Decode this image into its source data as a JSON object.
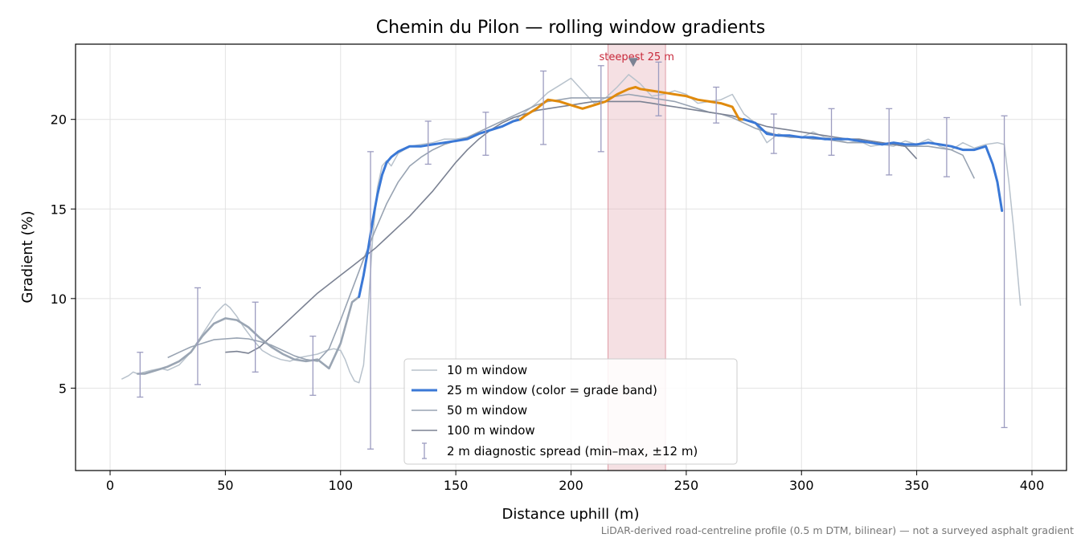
{
  "chart_data": {
    "type": "line",
    "title": "Chemin du Pilon — rolling window gradients",
    "xlabel": "Distance uphill (m)",
    "ylabel": "Gradient (%)",
    "xlim": [
      -15,
      415
    ],
    "ylim": [
      0.4,
      24.2
    ],
    "xticks": [
      0,
      50,
      100,
      150,
      200,
      250,
      300,
      350,
      400
    ],
    "yticks": [
      5,
      10,
      15,
      20
    ],
    "grid": true,
    "legend_position": "lower-center",
    "colors": {
      "w10": "#b8c2cc",
      "w25_blue": "#3a78d6",
      "w25_orange": "#e08a0c",
      "w50": "#98a3b2",
      "w100": "#7b8293",
      "errorbar": "#9c9cc0",
      "highlight": "#e8b4bc",
      "highlight_text": "#c8283a",
      "marker": "#7b8293"
    },
    "series": [
      {
        "name": "10 m window",
        "x": [
          5,
          8,
          10,
          12,
          15,
          18,
          22,
          25,
          30,
          35,
          40,
          43,
          46,
          49,
          50,
          52,
          55,
          58,
          62,
          66,
          70,
          74,
          78,
          82,
          86,
          90,
          94,
          97,
          100,
          102,
          104,
          106,
          108,
          110,
          112,
          114,
          116,
          118,
          120,
          122,
          125,
          130,
          135,
          140,
          145,
          150,
          155,
          160,
          165,
          170,
          175,
          180,
          185,
          190,
          195,
          200,
          205,
          210,
          215,
          220,
          225,
          230,
          235,
          240,
          245,
          250,
          255,
          260,
          265,
          270,
          275,
          280,
          285,
          290,
          295,
          300,
          305,
          310,
          315,
          320,
          325,
          330,
          335,
          340,
          345,
          350,
          355,
          360,
          365,
          370,
          375,
          380,
          385,
          388,
          390,
          392,
          395
        ],
        "y": [
          5.5,
          5.7,
          5.9,
          5.8,
          5.9,
          6.0,
          6.1,
          6.0,
          6.3,
          7.0,
          8.0,
          8.6,
          9.2,
          9.6,
          9.7,
          9.5,
          9.0,
          8.4,
          7.7,
          7.1,
          6.8,
          6.6,
          6.5,
          6.7,
          6.8,
          6.9,
          7.1,
          7.2,
          7.1,
          6.6,
          5.9,
          5.4,
          5.3,
          6.3,
          9.5,
          13.5,
          16.2,
          17.4,
          17.7,
          17.4,
          18.1,
          18.5,
          18.6,
          18.7,
          18.9,
          18.9,
          19.0,
          19.2,
          19.4,
          19.6,
          19.9,
          20.4,
          20.9,
          21.5,
          21.9,
          22.3,
          21.6,
          20.9,
          21.2,
          21.8,
          22.5,
          22.0,
          21.3,
          21.4,
          21.6,
          21.4,
          20.9,
          21.0,
          21.1,
          21.4,
          20.3,
          19.8,
          18.7,
          19.2,
          19.0,
          19.0,
          19.3,
          19.0,
          18.9,
          18.7,
          18.8,
          18.5,
          18.6,
          18.5,
          18.8,
          18.6,
          18.9,
          18.5,
          18.3,
          18.7,
          18.4,
          18.6,
          18.7,
          18.6,
          16.5,
          14.0,
          9.6
        ]
      },
      {
        "name": "25 m window (color = grade band)",
        "x": [
          12,
          15,
          20,
          25,
          30,
          35,
          40,
          45,
          50,
          55,
          60,
          65,
          70,
          75,
          80,
          85,
          90,
          93,
          95,
          100,
          105,
          108,
          110,
          112,
          114,
          116,
          118,
          120,
          122,
          125,
          130,
          135,
          140,
          145,
          150,
          155,
          160,
          165,
          170,
          175,
          178,
          180,
          185,
          190,
          195,
          200,
          205,
          210,
          215,
          220,
          225,
          228,
          230,
          235,
          240,
          245,
          250,
          255,
          260,
          265,
          270,
          273,
          275,
          280,
          285,
          290,
          295,
          300,
          305,
          310,
          315,
          320,
          325,
          330,
          335,
          340,
          345,
          350,
          355,
          360,
          365,
          370,
          375,
          380,
          383,
          385,
          387
        ],
        "y": [
          5.8,
          5.8,
          6.0,
          6.2,
          6.5,
          7.0,
          7.9,
          8.6,
          8.9,
          8.8,
          8.4,
          7.8,
          7.3,
          6.9,
          6.6,
          6.5,
          6.6,
          6.3,
          6.1,
          7.5,
          9.8,
          10.1,
          11.3,
          12.8,
          14.4,
          15.8,
          16.9,
          17.6,
          17.9,
          18.2,
          18.5,
          18.5,
          18.6,
          18.7,
          18.8,
          18.9,
          19.2,
          19.4,
          19.6,
          19.9,
          20.0,
          20.2,
          20.6,
          21.1,
          21.0,
          20.8,
          20.6,
          20.8,
          21.0,
          21.4,
          21.7,
          21.8,
          21.7,
          21.6,
          21.5,
          21.4,
          21.3,
          21.1,
          21.0,
          20.9,
          20.7,
          20.0,
          20.0,
          19.8,
          19.2,
          19.1,
          19.1,
          19.0,
          19.0,
          18.9,
          18.9,
          18.9,
          18.8,
          18.7,
          18.6,
          18.7,
          18.6,
          18.6,
          18.7,
          18.6,
          18.5,
          18.3,
          18.3,
          18.5,
          17.5,
          16.5,
          14.9
        ],
        "orange_range": [
          178,
          273
        ]
      },
      {
        "name": "50 m window",
        "x": [
          25,
          30,
          35,
          40,
          45,
          50,
          55,
          60,
          65,
          70,
          75,
          80,
          85,
          90,
          95,
          100,
          105,
          110,
          115,
          120,
          125,
          130,
          135,
          140,
          145,
          150,
          155,
          160,
          165,
          170,
          175,
          180,
          185,
          190,
          195,
          200,
          205,
          210,
          215,
          220,
          225,
          230,
          235,
          240,
          245,
          250,
          255,
          260,
          265,
          270,
          275,
          280,
          285,
          290,
          295,
          300,
          305,
          310,
          315,
          320,
          325,
          330,
          335,
          340,
          345,
          350,
          355,
          360,
          365,
          370,
          375
        ],
        "y": [
          6.7,
          7.0,
          7.3,
          7.5,
          7.7,
          7.75,
          7.8,
          7.75,
          7.6,
          7.4,
          7.1,
          6.8,
          6.6,
          6.5,
          7.2,
          8.8,
          10.5,
          12.2,
          13.8,
          15.3,
          16.5,
          17.4,
          17.9,
          18.3,
          18.6,
          18.8,
          19.0,
          19.3,
          19.6,
          19.9,
          20.2,
          20.5,
          20.8,
          21.0,
          21.1,
          21.2,
          21.2,
          21.2,
          21.2,
          21.3,
          21.4,
          21.3,
          21.2,
          21.1,
          21.0,
          20.8,
          20.6,
          20.4,
          20.3,
          20.1,
          19.8,
          19.5,
          19.3,
          19.1,
          19.0,
          19.0,
          18.9,
          18.9,
          18.8,
          18.7,
          18.7,
          18.7,
          18.6,
          18.6,
          18.5,
          18.5,
          18.5,
          18.4,
          18.3,
          18.0,
          16.7
        ]
      },
      {
        "name": "100 m window",
        "x": [
          50,
          55,
          60,
          65,
          70,
          75,
          80,
          85,
          90,
          95,
          100,
          105,
          110,
          115,
          120,
          125,
          130,
          135,
          140,
          145,
          150,
          155,
          160,
          165,
          170,
          175,
          180,
          185,
          190,
          195,
          200,
          205,
          210,
          215,
          220,
          225,
          230,
          235,
          240,
          245,
          250,
          255,
          260,
          265,
          270,
          275,
          280,
          285,
          290,
          295,
          300,
          305,
          310,
          315,
          320,
          325,
          330,
          335,
          340,
          345,
          350
        ],
        "y": [
          7.0,
          7.05,
          6.95,
          7.3,
          7.9,
          8.5,
          9.1,
          9.7,
          10.3,
          10.8,
          11.3,
          11.8,
          12.3,
          12.8,
          13.4,
          14.0,
          14.6,
          15.3,
          16.0,
          16.8,
          17.6,
          18.3,
          18.9,
          19.4,
          19.8,
          20.1,
          20.3,
          20.5,
          20.6,
          20.7,
          20.8,
          20.9,
          21.0,
          21.0,
          21.0,
          21.0,
          21.0,
          20.9,
          20.8,
          20.7,
          20.6,
          20.5,
          20.4,
          20.3,
          20.2,
          20.0,
          19.8,
          19.6,
          19.5,
          19.4,
          19.3,
          19.2,
          19.1,
          19.0,
          18.9,
          18.9,
          18.8,
          18.7,
          18.6,
          18.5,
          17.8
        ]
      },
      {
        "name": "2 m diagnostic spread (min–max, ±12 m)",
        "type": "errorbar",
        "points": [
          {
            "x": 13,
            "low": 4.5,
            "high": 7.0
          },
          {
            "x": 38,
            "low": 5.2,
            "high": 10.6
          },
          {
            "x": 63,
            "low": 5.9,
            "high": 9.8
          },
          {
            "x": 88,
            "low": 4.6,
            "high": 7.9
          },
          {
            "x": 113,
            "low": 1.6,
            "high": 18.2
          },
          {
            "x": 138,
            "low": 17.5,
            "high": 19.9
          },
          {
            "x": 163,
            "low": 18.0,
            "high": 20.4
          },
          {
            "x": 188,
            "low": 18.6,
            "high": 22.7
          },
          {
            "x": 213,
            "low": 18.2,
            "high": 23.0
          },
          {
            "x": 238,
            "low": 20.2,
            "high": 23.2
          },
          {
            "x": 263,
            "low": 19.8,
            "high": 21.8
          },
          {
            "x": 288,
            "low": 18.1,
            "high": 20.3
          },
          {
            "x": 313,
            "low": 18.0,
            "high": 20.6
          },
          {
            "x": 338,
            "low": 16.9,
            "high": 20.6
          },
          {
            "x": 363,
            "low": 16.8,
            "high": 20.1
          },
          {
            "x": 388,
            "low": 2.8,
            "high": 20.2
          }
        ]
      }
    ],
    "highlight": {
      "x_start": 216,
      "x_end": 241,
      "label": "steepest 25 m",
      "marker_x": 227,
      "marker_y": 23.2
    },
    "footnote": "LiDAR-derived road-centreline profile (0.5 m DTM, bilinear) — not a surveyed asphalt gradient"
  }
}
